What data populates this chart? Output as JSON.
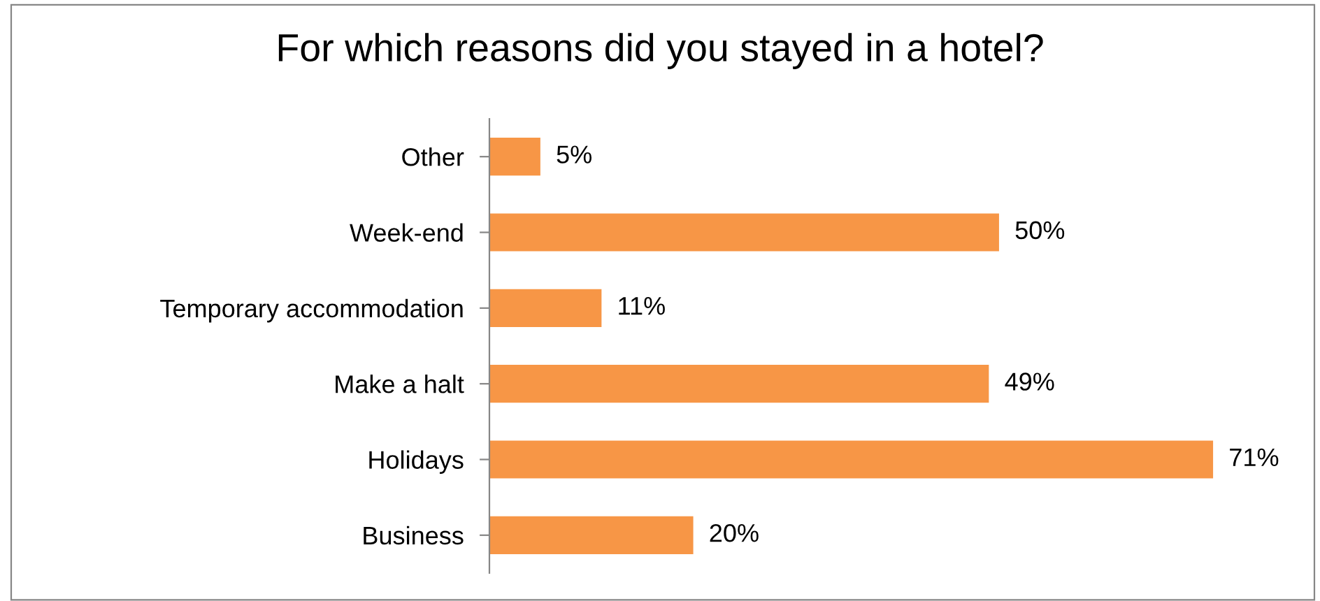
{
  "chart_data": {
    "type": "bar",
    "orientation": "horizontal",
    "title": "For which reasons did you stayed in a hotel?",
    "categories": [
      "Other",
      "Week-end",
      "Temporary accommodation",
      "Make a halt",
      "Holidays",
      "Business"
    ],
    "values": [
      5,
      50,
      11,
      49,
      71,
      20
    ],
    "value_labels": [
      "5%",
      "50%",
      "11%",
      "49%",
      "71%",
      "20%"
    ],
    "color": "#f79646",
    "grid": false,
    "legend": false
  }
}
